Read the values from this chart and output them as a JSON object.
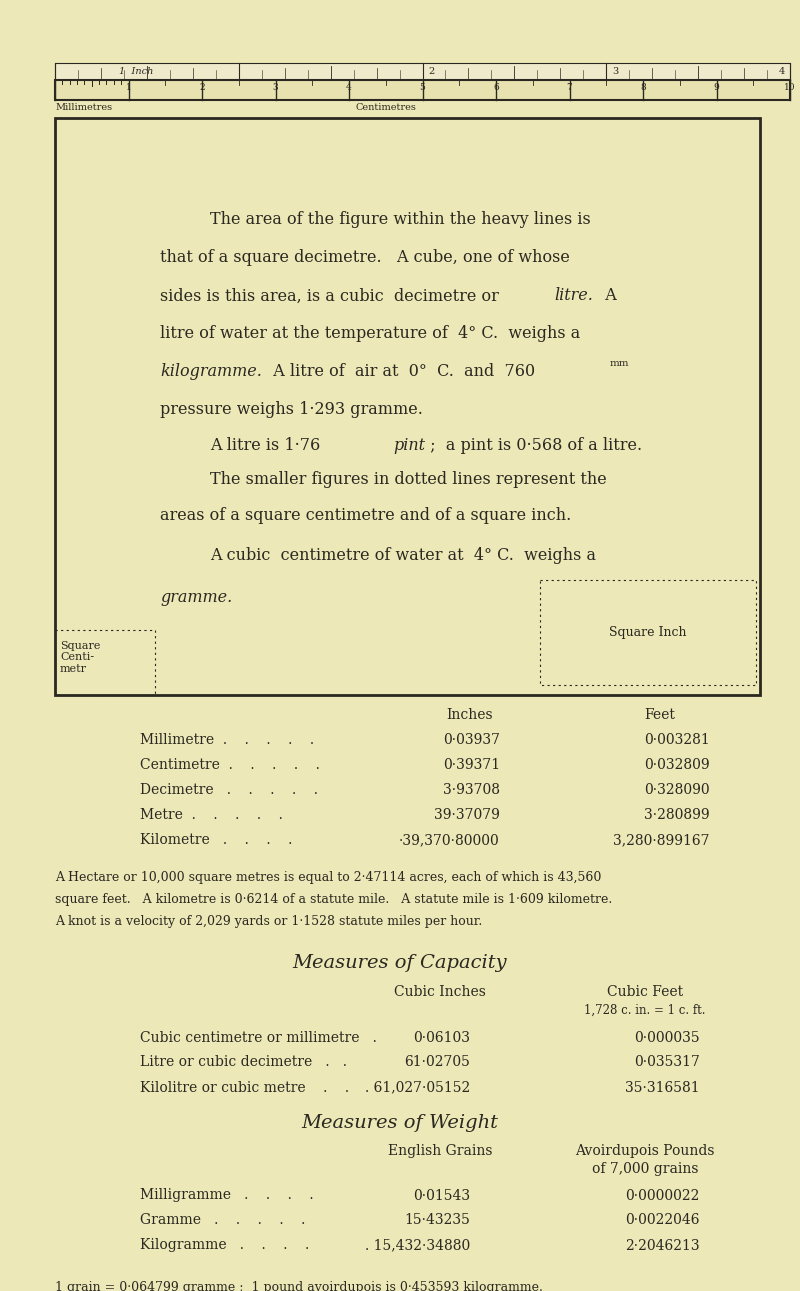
{
  "bg_color": "#ede8b8",
  "text_color": "#2a2820",
  "measures_length": [
    {
      "label": "Millimetre  .    .    .    .    .",
      "inches": "0·03937",
      "feet": "0·003281"
    },
    {
      "label": "Centimetre  .    .    .    .    .",
      "inches": "0·39371",
      "feet": "0·032809"
    },
    {
      "label": "Decimetre   .    .    .    .    .",
      "inches": "3·93708",
      "feet": "0·328090"
    },
    {
      "label": "Metre  .    .    .    .    .",
      "inches": "39·37079",
      "feet": "3·280899"
    },
    {
      "label": "Kilometre   .    .    .    .",
      "inches": "·39,370·80000",
      "feet": "3,280·899167"
    }
  ],
  "hectare_note": "A Hectare or 10,000 square metres is equal to 2·47114 acres, each of which is 43,560",
  "hectare_note2": "square feet.   A kilometre is 0·6214 of a statute mile.   A statute mile is 1·609 kilometre.",
  "knot_note": "A knot is a velocity of 2,029 yards or 1·1528 statute miles per hour.",
  "capacity_title": "Measures of Capacity",
  "capacity_col1": "Cubic Inches",
  "capacity_col2": "Cubic Feet",
  "capacity_col2b": "1,728 c. in. = 1 c. ft.",
  "capacity_rows": [
    {
      "label": "Cubic centimetre or millimetre   .",
      "ci": "0·06103",
      "cf": "0·000035"
    },
    {
      "label": "Litre or cubic decimetre   .   .",
      "ci": "61·02705",
      "cf": "0·035317"
    },
    {
      "label": "Kilolitre or cubic metre    .    .",
      "ci": ". 61,027·05152",
      "cf": "35·316581"
    }
  ],
  "weight_title": "Measures of Weight",
  "weight_col1": "English Grains",
  "weight_col2": "Avoirdupois Pounds",
  "weight_col2b": "of 7,000 grains",
  "weight_rows": [
    {
      "label": "Milligramme   .    .    .    .",
      "eg": "0·01543",
      "ap": "0·0000022"
    },
    {
      "label": "Gramme   .    .    .    .    .",
      "eg": "15·43235",
      "ap": "0·0022046"
    },
    {
      "label": "Kilogramme   .    .    .    .",
      "eg": ". 15,432·34880",
      "ap": "2·2046213"
    }
  ],
  "grain_note": "1 grain = 0·064799 gramme ;  1 pound avoirdupois is 0·453593 kilogramme."
}
